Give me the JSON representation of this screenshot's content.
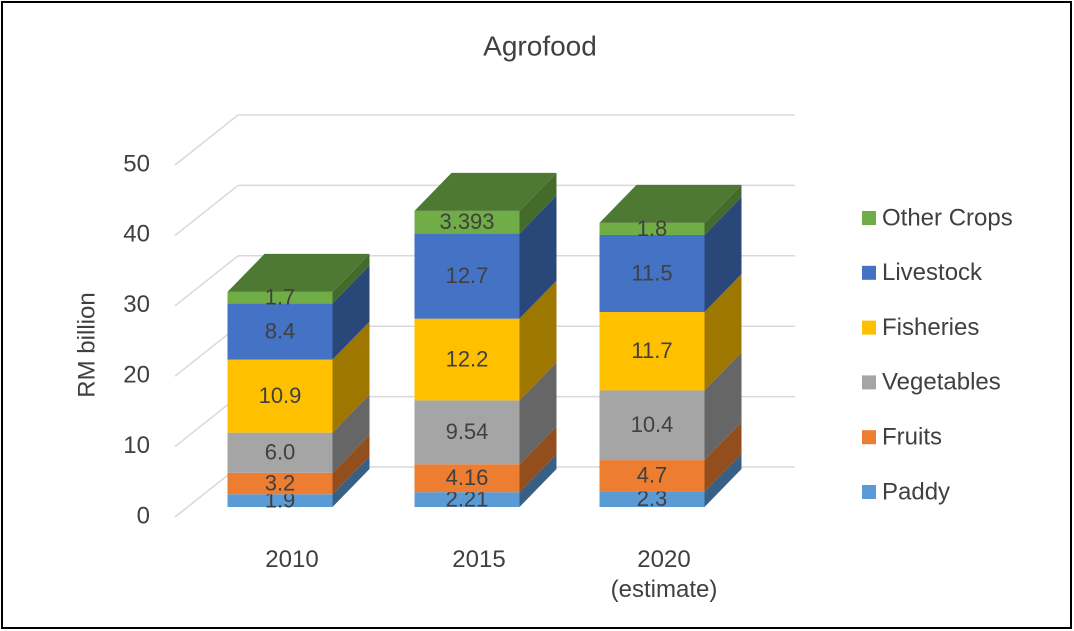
{
  "chart_data": {
    "type": "bar",
    "stacked": true,
    "title": "Agrofood",
    "y_label": "RM billion",
    "categories": [
      "2010",
      "2015",
      "2020 (estimate)"
    ],
    "series": [
      {
        "name": "Paddy",
        "color": "#5b9bd5",
        "values": [
          1.9,
          2.21,
          2.3
        ]
      },
      {
        "name": "Fruits",
        "color": "#ed7d31",
        "values": [
          3.2,
          4.16,
          4.7
        ]
      },
      {
        "name": "Vegetables",
        "color": "#a5a5a5",
        "values": [
          6,
          9.54,
          10.4
        ],
        "value_labels": [
          "6.0",
          "9.54",
          "10.4"
        ]
      },
      {
        "name": "Fisheries",
        "color": "#ffc000",
        "values": [
          10.9,
          12.2,
          11.7
        ]
      },
      {
        "name": "Livestock",
        "color": "#4472c4",
        "values": [
          8.4,
          12.7,
          11.5
        ]
      },
      {
        "name": "Other Crops",
        "color": "#70ad47",
        "values": [
          1.7,
          3.393,
          1.8
        ]
      }
    ],
    "ylim": [
      0,
      50
    ],
    "yticks": [
      0,
      10,
      20,
      30,
      40,
      50
    ],
    "grid": true,
    "legend": "right"
  }
}
